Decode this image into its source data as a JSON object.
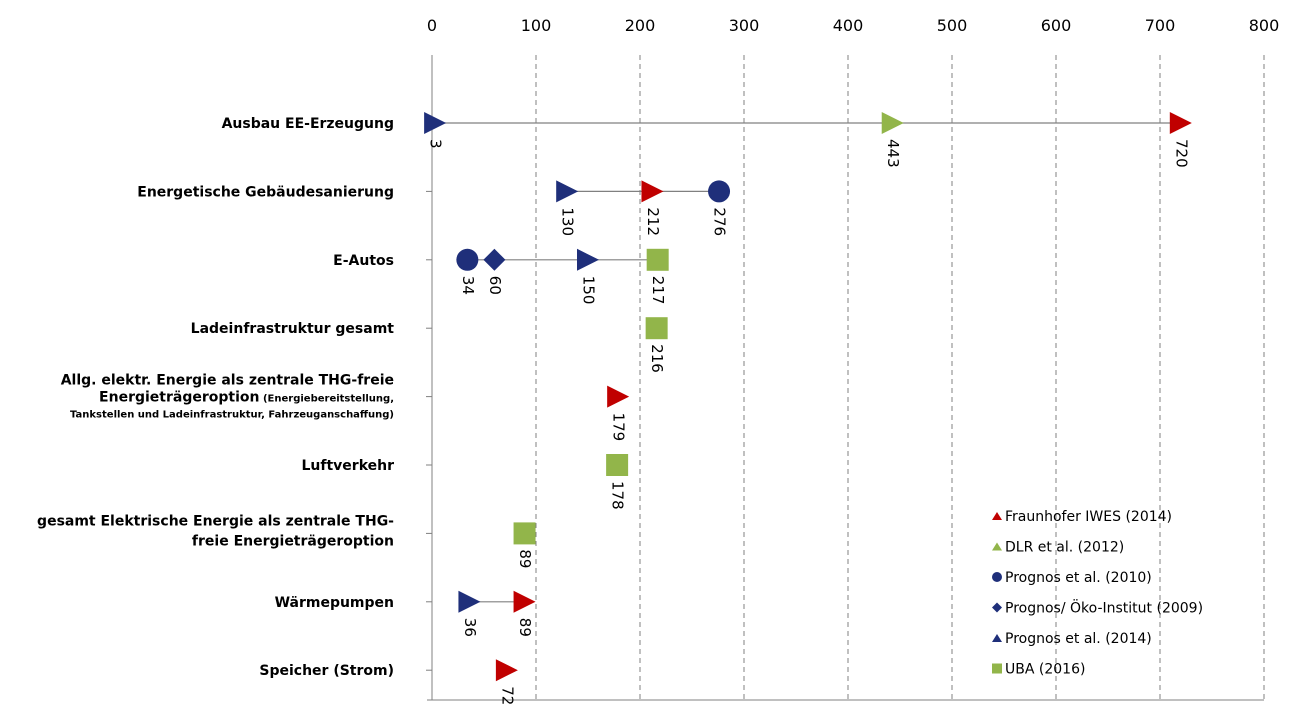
{
  "chart_data": {
    "type": "scatter",
    "orientation": "horizontal",
    "xlim": [
      0,
      800
    ],
    "x_ticks": [
      0,
      100,
      200,
      300,
      400,
      500,
      600,
      700,
      800
    ],
    "x_tick_labels": [
      "0",
      "100",
      "200",
      "300",
      "400",
      "500",
      "600",
      "700",
      "800"
    ],
    "grid": "vertical dashed",
    "legend_position": "bottom-right",
    "colors": {
      "red": "#C00000",
      "light_green": "#92B54A",
      "navy": "#1F2F7A",
      "axis": "#808080"
    },
    "categories": [
      {
        "label": [
          "Ausbau EE-Erzeugung"
        ]
      },
      {
        "label": [
          "Energetische Gebäudesanierung"
        ]
      },
      {
        "label": [
          "E-Autos"
        ]
      },
      {
        "label": [
          "Ladeinfrastruktur gesamt"
        ]
      },
      {
        "label": [
          "Allg. elektr. Energie  als zentrale THG-freie"
        ],
        "label_mixed": {
          "bold": "Energieträgeroption",
          "small": " (Energiebereitstellung,"
        },
        "label_small": [
          "Tankstellen und Ladeinfrastruktur, Fahrzeuganschaffung)"
        ]
      },
      {
        "label": [
          "Luftverkehr"
        ]
      },
      {
        "label": [
          "gesamt Elektrische Energie als zentrale THG-",
          "freie Energieträgeroption"
        ]
      },
      {
        "label": [
          "Wärmepumpen"
        ]
      },
      {
        "label": [
          "Speicher (Strom)"
        ]
      }
    ],
    "series": [
      {
        "name": "Fraunhofer IWES (2014)",
        "marker": "triangle-right",
        "legend_marker": "triangle-up",
        "color": "#C00000",
        "points": [
          {
            "category": 0,
            "value": 720
          },
          {
            "category": 1,
            "value": 212
          },
          {
            "category": 4,
            "value": 179
          },
          {
            "category": 7,
            "value": 89
          },
          {
            "category": 8,
            "value": 72
          }
        ]
      },
      {
        "name": "DLR et al. (2012)",
        "marker": "triangle-right",
        "legend_marker": "triangle-up",
        "color": "#92B54A",
        "points": [
          {
            "category": 0,
            "value": 443
          }
        ]
      },
      {
        "name": "Prognos et al. (2010)",
        "marker": "circle",
        "color": "#1F2F7A",
        "points": [
          {
            "category": 1,
            "value": 276
          },
          {
            "category": 2,
            "value": 34
          }
        ]
      },
      {
        "name": "Prognos/ Öko-Institut (2009)",
        "marker": "diamond",
        "color": "#1F2F7A",
        "points": [
          {
            "category": 2,
            "value": 60
          }
        ]
      },
      {
        "name": "Prognos et al. (2014)",
        "marker": "triangle-right",
        "legend_marker": "triangle-up",
        "color": "#1F2F7A",
        "points": [
          {
            "category": 0,
            "value": 3
          },
          {
            "category": 1,
            "value": 130
          },
          {
            "category": 2,
            "value": 150
          },
          {
            "category": 7,
            "value": 36
          }
        ]
      },
      {
        "name": "UBA (2016)",
        "marker": "square",
        "color": "#92B54A",
        "points": [
          {
            "category": 2,
            "value": 217
          },
          {
            "category": 3,
            "value": 216
          },
          {
            "category": 5,
            "value": 178
          },
          {
            "category": 6,
            "value": 89
          }
        ]
      }
    ]
  }
}
